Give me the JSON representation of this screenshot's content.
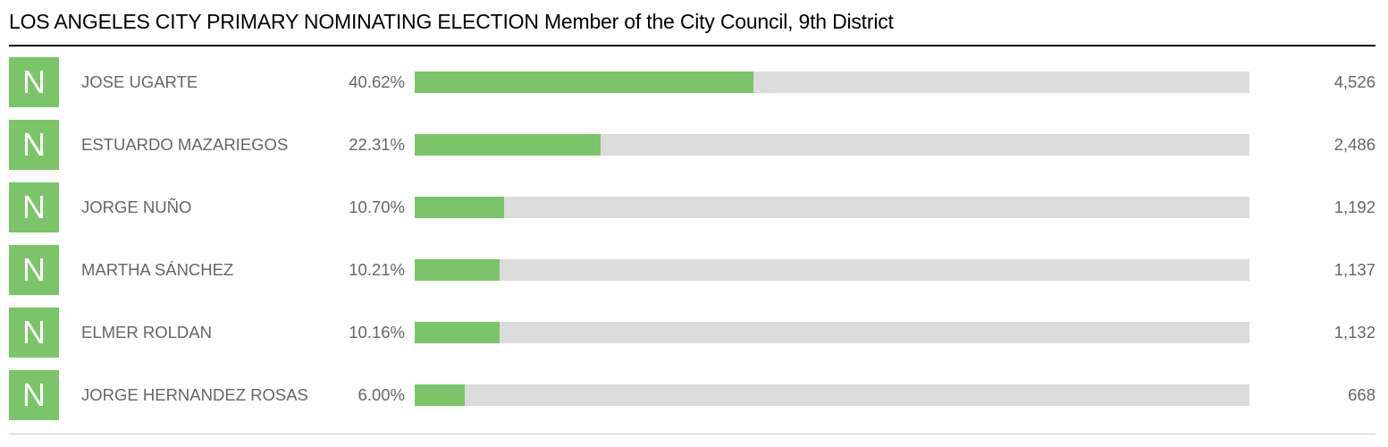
{
  "title": "LOS ANGELES CITY PRIMARY NOMINATING ELECTION Member of the City Council, 9th District",
  "colors": {
    "bar_fill": "#7bc46a",
    "bar_track": "#dcdcdc",
    "badge": "#7bc46a",
    "text_muted": "#666666"
  },
  "chart_data": {
    "type": "bar",
    "orientation": "horizontal",
    "title": "LOS ANGELES CITY PRIMARY NOMINATING ELECTION Member of the City Council, 9th District",
    "xlim": [
      0,
      100
    ],
    "grid": false,
    "rows": [
      {
        "badge": "N",
        "name": "JOSE UGARTE",
        "percent_label": "40.62%",
        "percent": 40.62,
        "votes": "4,526"
      },
      {
        "badge": "N",
        "name": "ESTUARDO MAZARIEGOS",
        "percent_label": "22.31%",
        "percent": 22.31,
        "votes": "2,486"
      },
      {
        "badge": "N",
        "name": "JORGE NUÑO",
        "percent_label": "10.70%",
        "percent": 10.7,
        "votes": "1,192"
      },
      {
        "badge": "N",
        "name": "MARTHA SÁNCHEZ",
        "percent_label": "10.21%",
        "percent": 10.21,
        "votes": "1,137"
      },
      {
        "badge": "N",
        "name": "ELMER ROLDAN",
        "percent_label": "10.16%",
        "percent": 10.16,
        "votes": "1,132"
      },
      {
        "badge": "N",
        "name": "JORGE HERNANDEZ ROSAS",
        "percent_label": "6.00%",
        "percent": 6.0,
        "votes": "668"
      }
    ]
  }
}
